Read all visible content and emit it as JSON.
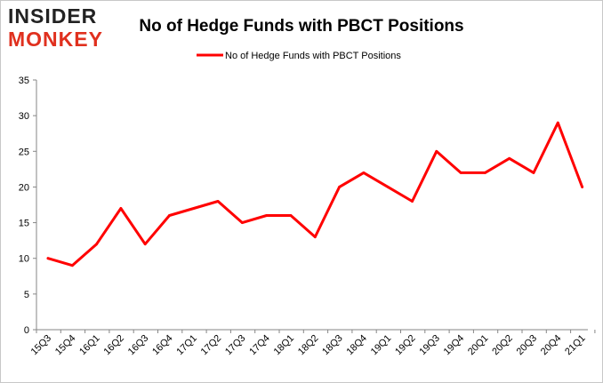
{
  "brand": {
    "line1": "INSIDER",
    "line2": "MONKEY",
    "accent_color": "#e0301e"
  },
  "chart_data": {
    "type": "line",
    "title": "No of Hedge Funds with PBCT Positions",
    "xlabel": "",
    "ylabel": "",
    "categories": [
      "15Q3",
      "15Q4",
      "16Q1",
      "16Q2",
      "16Q3",
      "16Q4",
      "17Q1",
      "17Q2",
      "17Q3",
      "17Q4",
      "18Q1",
      "18Q2",
      "18Q3",
      "18Q4",
      "19Q1",
      "19Q2",
      "19Q3",
      "19Q4",
      "20Q1",
      "20Q2",
      "20Q3",
      "20Q4",
      "21Q1"
    ],
    "series": [
      {
        "name": "No of Hedge Funds with PBCT Positions",
        "color": "#ff0000",
        "values": [
          10,
          9,
          12,
          17,
          12,
          16,
          17,
          18,
          15,
          16,
          16,
          13,
          20,
          22,
          20,
          18,
          25,
          22,
          22,
          24,
          22,
          29,
          20
        ]
      }
    ],
    "ylim": [
      0,
      35
    ],
    "yticks": [
      0,
      5,
      10,
      15,
      20,
      25,
      30,
      35
    ],
    "grid": false,
    "legend_position": "top-center"
  }
}
